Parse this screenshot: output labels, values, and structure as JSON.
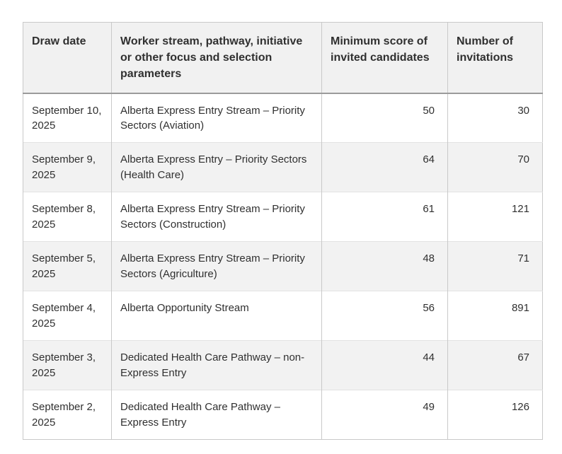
{
  "colors": {
    "header_bg": "#f1f1f1",
    "row_alt_bg": "#f2f2f2",
    "border": "#c9c9c9",
    "row_divider": "#e3e3e3",
    "header_border_bottom": "#9b9b9b",
    "text": "#303030"
  },
  "table": {
    "columns": [
      "Draw date",
      "Worker stream, pathway, initiative or other focus and selection parameters",
      "Minimum score of invited candidates",
      "Number of invitations"
    ],
    "rows": [
      {
        "date": "September 10, 2025",
        "stream": "Alberta Express Entry Stream – Priority Sectors (Aviation)",
        "score": "50",
        "invitations": "30"
      },
      {
        "date": "September 9, 2025",
        "stream": "Alberta Express Entry – Priority Sectors (Health Care)",
        "score": "64",
        "invitations": "70"
      },
      {
        "date": "September 8, 2025",
        "stream": "Alberta Express Entry Stream – Priority Sectors (Construction)",
        "score": "61",
        "invitations": "121"
      },
      {
        "date": "September 5, 2025",
        "stream": "Alberta Express Entry Stream – Priority Sectors (Agriculture)",
        "score": "48",
        "invitations": "71"
      },
      {
        "date": "September 4, 2025",
        "stream": "Alberta Opportunity Stream",
        "score": "56",
        "invitations": "891"
      },
      {
        "date": "September 3, 2025",
        "stream": "Dedicated Health Care Pathway – non-Express Entry",
        "score": "44",
        "invitations": "67"
      },
      {
        "date": "September 2, 2025",
        "stream": "Dedicated Health Care Pathway – Express Entry",
        "score": "49",
        "invitations": "126"
      }
    ]
  }
}
